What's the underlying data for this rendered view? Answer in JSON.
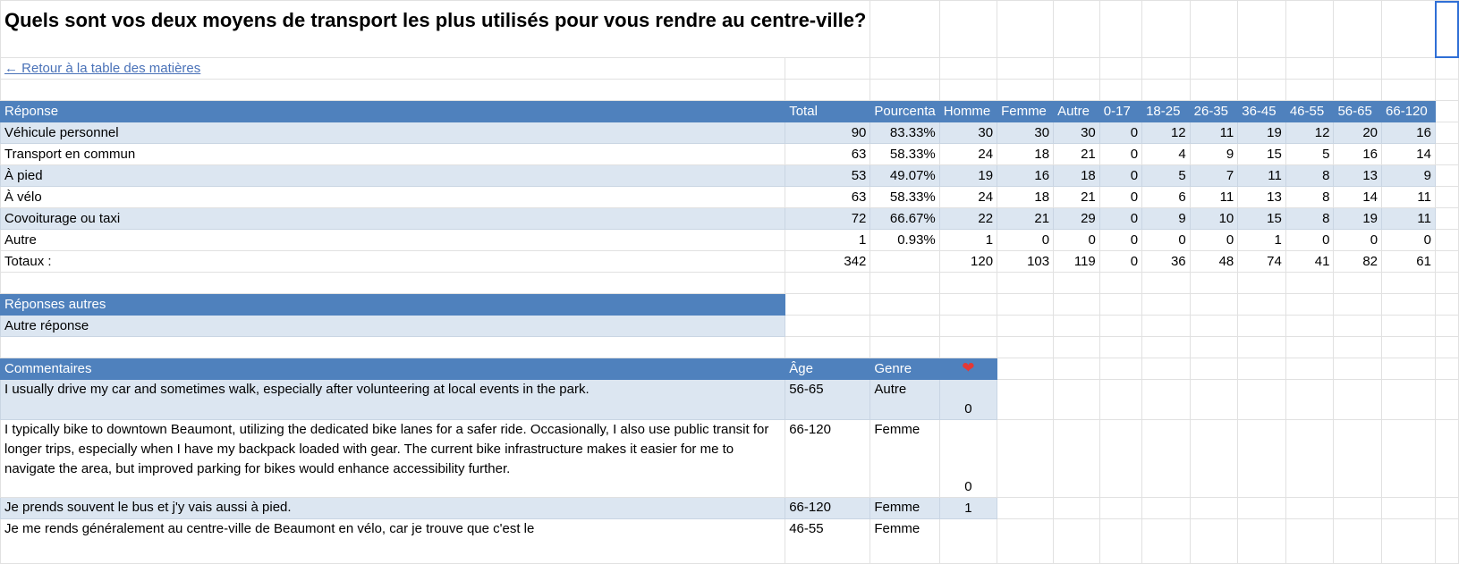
{
  "title": "Quels sont vos deux moyens de transport les plus utilisés pour vous rendre au centre-ville?",
  "back_link": "← Retour à la table des matières",
  "main_table": {
    "headers": [
      "Réponse",
      "Total",
      "Pourcenta",
      "Homme",
      "Femme",
      "Autre",
      "0-17",
      "18-25",
      "26-35",
      "36-45",
      "46-55",
      "56-65",
      "66-120"
    ],
    "rows": [
      [
        "Véhicule personnel",
        "90",
        "83.33%",
        "30",
        "30",
        "30",
        "0",
        "12",
        "11",
        "19",
        "12",
        "20",
        "16"
      ],
      [
        "Transport en commun",
        "63",
        "58.33%",
        "24",
        "18",
        "21",
        "0",
        "4",
        "9",
        "15",
        "5",
        "16",
        "14"
      ],
      [
        "À pied",
        "53",
        "49.07%",
        "19",
        "16",
        "18",
        "0",
        "5",
        "7",
        "11",
        "8",
        "13",
        "9"
      ],
      [
        "À vélo",
        "63",
        "58.33%",
        "24",
        "18",
        "21",
        "0",
        "6",
        "11",
        "13",
        "8",
        "14",
        "11"
      ],
      [
        "Covoiturage ou taxi",
        "72",
        "66.67%",
        "22",
        "21",
        "29",
        "0",
        "9",
        "10",
        "15",
        "8",
        "19",
        "11"
      ],
      [
        "Autre",
        "1",
        "0.93%",
        "1",
        "0",
        "0",
        "0",
        "0",
        "0",
        "1",
        "0",
        "0",
        "0"
      ]
    ],
    "totals": [
      "Totaux :",
      "342",
      "",
      "120",
      "103",
      "119",
      "0",
      "36",
      "48",
      "74",
      "41",
      "82",
      "61"
    ]
  },
  "other_responses": {
    "header": "Réponses autres",
    "rows": [
      "Autre réponse"
    ]
  },
  "comments": {
    "headers": [
      "Commentaires",
      "Âge",
      "Genre"
    ],
    "heart_icon": "heart-icon",
    "rows": [
      {
        "text": "I usually drive my car and sometimes walk, especially after volunteering at local events in the park.",
        "age": "56-65",
        "genre": "Autre",
        "likes": "0"
      },
      {
        "text": "I typically bike to downtown Beaumont, utilizing the dedicated bike lanes for a safer ride. Occasionally, I also use public transit for longer trips, especially when I have my backpack loaded with gear. The current bike infrastructure makes it easier for me to navigate the area, but improved parking for bikes would enhance accessibility further.",
        "age": "66-120",
        "genre": "Femme",
        "likes": "0"
      },
      {
        "text": "Je prends souvent le bus et j'y vais aussi à pied.",
        "age": "66-120",
        "genre": "Femme",
        "likes": "1"
      },
      {
        "text": "Je me rends généralement au centre-ville de Beaumont en vélo, car je trouve que c'est le",
        "age": "46-55",
        "genre": "Femme",
        "likes": ""
      }
    ]
  }
}
